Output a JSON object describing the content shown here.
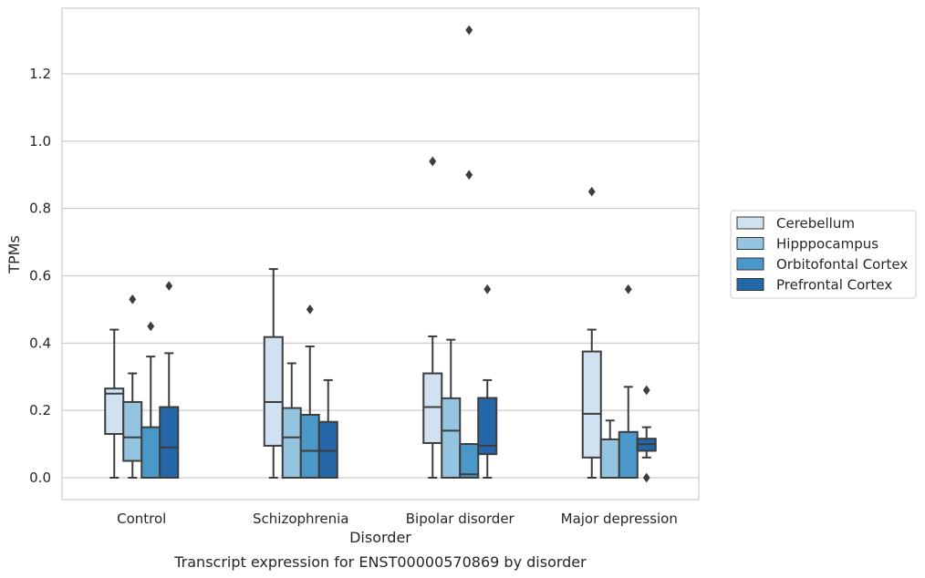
{
  "caption": "Transcript expression for ENST00000570869 by disorder",
  "chart_data": {
    "type": "box",
    "xlabel": "Disorder",
    "ylabel": "TPMs",
    "ylim": [
      -0.065,
      1.395
    ],
    "yticks": [
      "0.0",
      "0.2",
      "0.4",
      "0.6",
      "0.8",
      "1.0",
      "1.2"
    ],
    "grid": true,
    "legend_position": "right",
    "categories": [
      "Control",
      "Schizophrenia",
      "Bipolar disorder",
      "Major depression"
    ],
    "series": [
      {
        "name": "Cerebellum",
        "color": "#d0e1f2",
        "boxes": [
          {
            "whisker_low": 0.0,
            "q1": 0.13,
            "median": 0.25,
            "q3": 0.265,
            "whisker_high": 0.44,
            "outliers": []
          },
          {
            "whisker_low": 0.0,
            "q1": 0.095,
            "median": 0.225,
            "q3": 0.418,
            "whisker_high": 0.62,
            "outliers": []
          },
          {
            "whisker_low": 0.0,
            "q1": 0.103,
            "median": 0.21,
            "q3": 0.31,
            "whisker_high": 0.42,
            "outliers": [
              0.94
            ]
          },
          {
            "whisker_low": 0.0,
            "q1": 0.06,
            "median": 0.19,
            "q3": 0.375,
            "whisker_high": 0.44,
            "outliers": [
              0.85
            ]
          }
        ]
      },
      {
        "name": "Hipppocampus",
        "color": "#94c4df",
        "boxes": [
          {
            "whisker_low": 0.0,
            "q1": 0.05,
            "median": 0.12,
            "q3": 0.225,
            "whisker_high": 0.31,
            "outliers": [
              0.53
            ]
          },
          {
            "whisker_low": 0.0,
            "q1": 0.0,
            "median": 0.12,
            "q3": 0.207,
            "whisker_high": 0.34,
            "outliers": []
          },
          {
            "whisker_low": 0.0,
            "q1": 0.0,
            "median": 0.14,
            "q3": 0.236,
            "whisker_high": 0.41,
            "outliers": []
          },
          {
            "whisker_low": 0.0,
            "q1": 0.0,
            "median": 0.0,
            "q3": 0.114,
            "whisker_high": 0.17,
            "outliers": []
          }
        ]
      },
      {
        "name": "Orbitofontal Cortex",
        "color": "#4a98c9",
        "boxes": [
          {
            "whisker_low": 0.0,
            "q1": 0.0,
            "median": 0.0,
            "q3": 0.15,
            "whisker_high": 0.36,
            "outliers": [
              0.45
            ]
          },
          {
            "whisker_low": 0.0,
            "q1": 0.0,
            "median": 0.08,
            "q3": 0.187,
            "whisker_high": 0.39,
            "outliers": [
              0.5
            ]
          },
          {
            "whisker_low": 0.0,
            "q1": 0.0,
            "median": 0.01,
            "q3": 0.1,
            "whisker_high": 0.1,
            "outliers": [
              0.9,
              1.33
            ]
          },
          {
            "whisker_low": 0.0,
            "q1": 0.0,
            "median": 0.0,
            "q3": 0.136,
            "whisker_high": 0.27,
            "outliers": [
              0.56
            ]
          }
        ]
      },
      {
        "name": "Prefrontal Cortex",
        "color": "#2566a8",
        "boxes": [
          {
            "whisker_low": 0.0,
            "q1": 0.0,
            "median": 0.09,
            "q3": 0.21,
            "whisker_high": 0.37,
            "outliers": [
              0.57
            ]
          },
          {
            "whisker_low": 0.0,
            "q1": 0.0,
            "median": 0.08,
            "q3": 0.166,
            "whisker_high": 0.29,
            "outliers": []
          },
          {
            "whisker_low": 0.0,
            "q1": 0.07,
            "median": 0.095,
            "q3": 0.237,
            "whisker_high": 0.29,
            "outliers": [
              0.56
            ]
          },
          {
            "whisker_low": 0.06,
            "q1": 0.08,
            "median": 0.1,
            "q3": 0.116,
            "whisker_high": 0.15,
            "outliers": [
              0.0,
              0.26
            ]
          }
        ]
      }
    ]
  }
}
